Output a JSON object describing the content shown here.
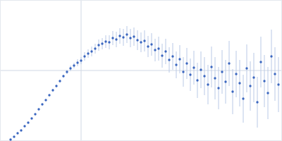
{
  "chart_data": {
    "type": "scatter",
    "x": [
      15,
      20,
      25,
      30,
      35,
      40,
      45,
      50,
      55,
      60,
      65,
      70,
      75,
      80,
      85,
      90,
      95,
      100,
      105,
      110,
      115,
      120,
      125,
      130,
      135,
      140,
      145,
      150,
      155,
      160,
      165,
      170,
      175,
      180,
      185,
      190,
      195,
      200,
      205,
      210,
      215,
      220,
      225,
      230,
      235,
      240,
      245,
      250,
      255,
      260,
      265,
      270,
      275,
      280,
      285,
      290,
      295,
      300,
      305,
      310,
      315,
      320,
      325,
      330,
      335,
      340,
      345,
      350,
      355,
      360,
      365,
      370,
      375,
      380,
      385,
      390,
      395
    ],
    "values": [
      2,
      6,
      11,
      15,
      21,
      26,
      32,
      38,
      45,
      52,
      58,
      65,
      72,
      78,
      85,
      92,
      98,
      103,
      107,
      111,
      114,
      120,
      124,
      127,
      131,
      136,
      138,
      141,
      140,
      146,
      144,
      149,
      147,
      151,
      146,
      148,
      143,
      140,
      142,
      134,
      137,
      129,
      131,
      121,
      127,
      115,
      120,
      108,
      116,
      98,
      110,
      94,
      104,
      86,
      101,
      92,
      80,
      105,
      89,
      75,
      98,
      84,
      110,
      70,
      95,
      82,
      60,
      103,
      78,
      90,
      55,
      112,
      85,
      68,
      120,
      95,
      80
    ],
    "errors": [
      1,
      1,
      1,
      1,
      1,
      1,
      1,
      1,
      1,
      1,
      1,
      1,
      2,
      2,
      2,
      2,
      3,
      4,
      4,
      5,
      5,
      6,
      6,
      7,
      7,
      8,
      8,
      9,
      10,
      10,
      11,
      11,
      12,
      12,
      13,
      13,
      14,
      14,
      15,
      15,
      16,
      16,
      17,
      17,
      18,
      18,
      19,
      19,
      20,
      21,
      22,
      23,
      24,
      25,
      26,
      27,
      28,
      29,
      30,
      30,
      31,
      31,
      32,
      32,
      33,
      33,
      34,
      34,
      35,
      35,
      36,
      36,
      37,
      37,
      38,
      38,
      39
    ],
    "color": "#3a66bf",
    "marker": "circle",
    "xlim": [
      0,
      400
    ],
    "ylim": [
      0,
      200
    ],
    "xticks": [
      115
    ],
    "yticks": [
      100
    ],
    "grid": true,
    "tick_labels": false
  }
}
